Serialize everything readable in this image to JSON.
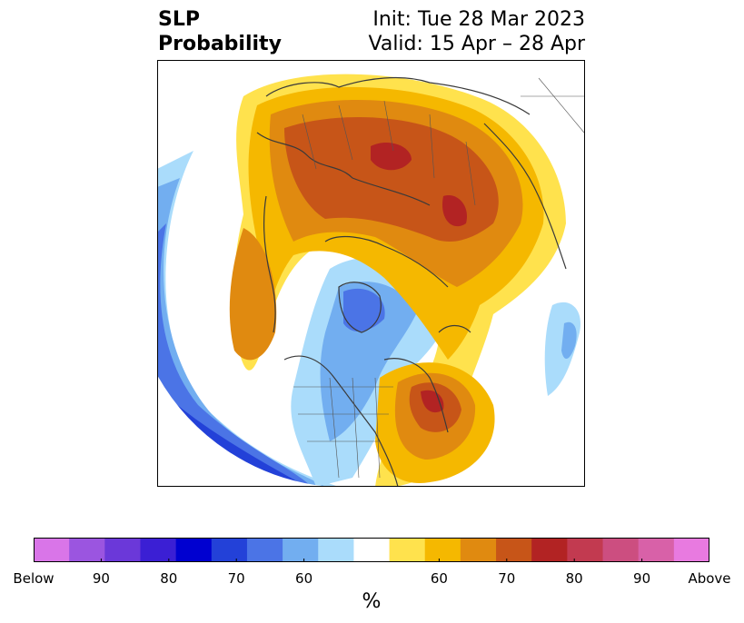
{
  "header": {
    "title_line1": "SLP",
    "title_line2": "Probability",
    "init_text": "Init: Tue 28 Mar 2023",
    "valid_text": "Valid: 15 Apr – 28 Apr"
  },
  "colorbar": {
    "unit": "%",
    "colors": [
      "#d975e8",
      "#9b55e0",
      "#6b38d9",
      "#3b1fd4",
      "#0000d0",
      "#2341d8",
      "#4b74e6",
      "#72aef0",
      "#aadcfb",
      "#ffffff",
      "#ffe24d",
      "#f5b800",
      "#e08a10",
      "#c75518",
      "#b22323",
      "#c23a50",
      "#cc4e80",
      "#d861a8",
      "#e87ae0"
    ],
    "ticks": [
      {
        "label": "Below",
        "frac": 0.0
      },
      {
        "label": "90",
        "frac": 0.1
      },
      {
        "label": "80",
        "frac": 0.2
      },
      {
        "label": "70",
        "frac": 0.3
      },
      {
        "label": "60",
        "frac": 0.4
      },
      {
        "label": "60",
        "frac": 0.6
      },
      {
        "label": "70",
        "frac": 0.7
      },
      {
        "label": "80",
        "frac": 0.8
      },
      {
        "label": "90",
        "frac": 0.9
      },
      {
        "label": "Above",
        "frac": 1.0
      }
    ]
  }
}
